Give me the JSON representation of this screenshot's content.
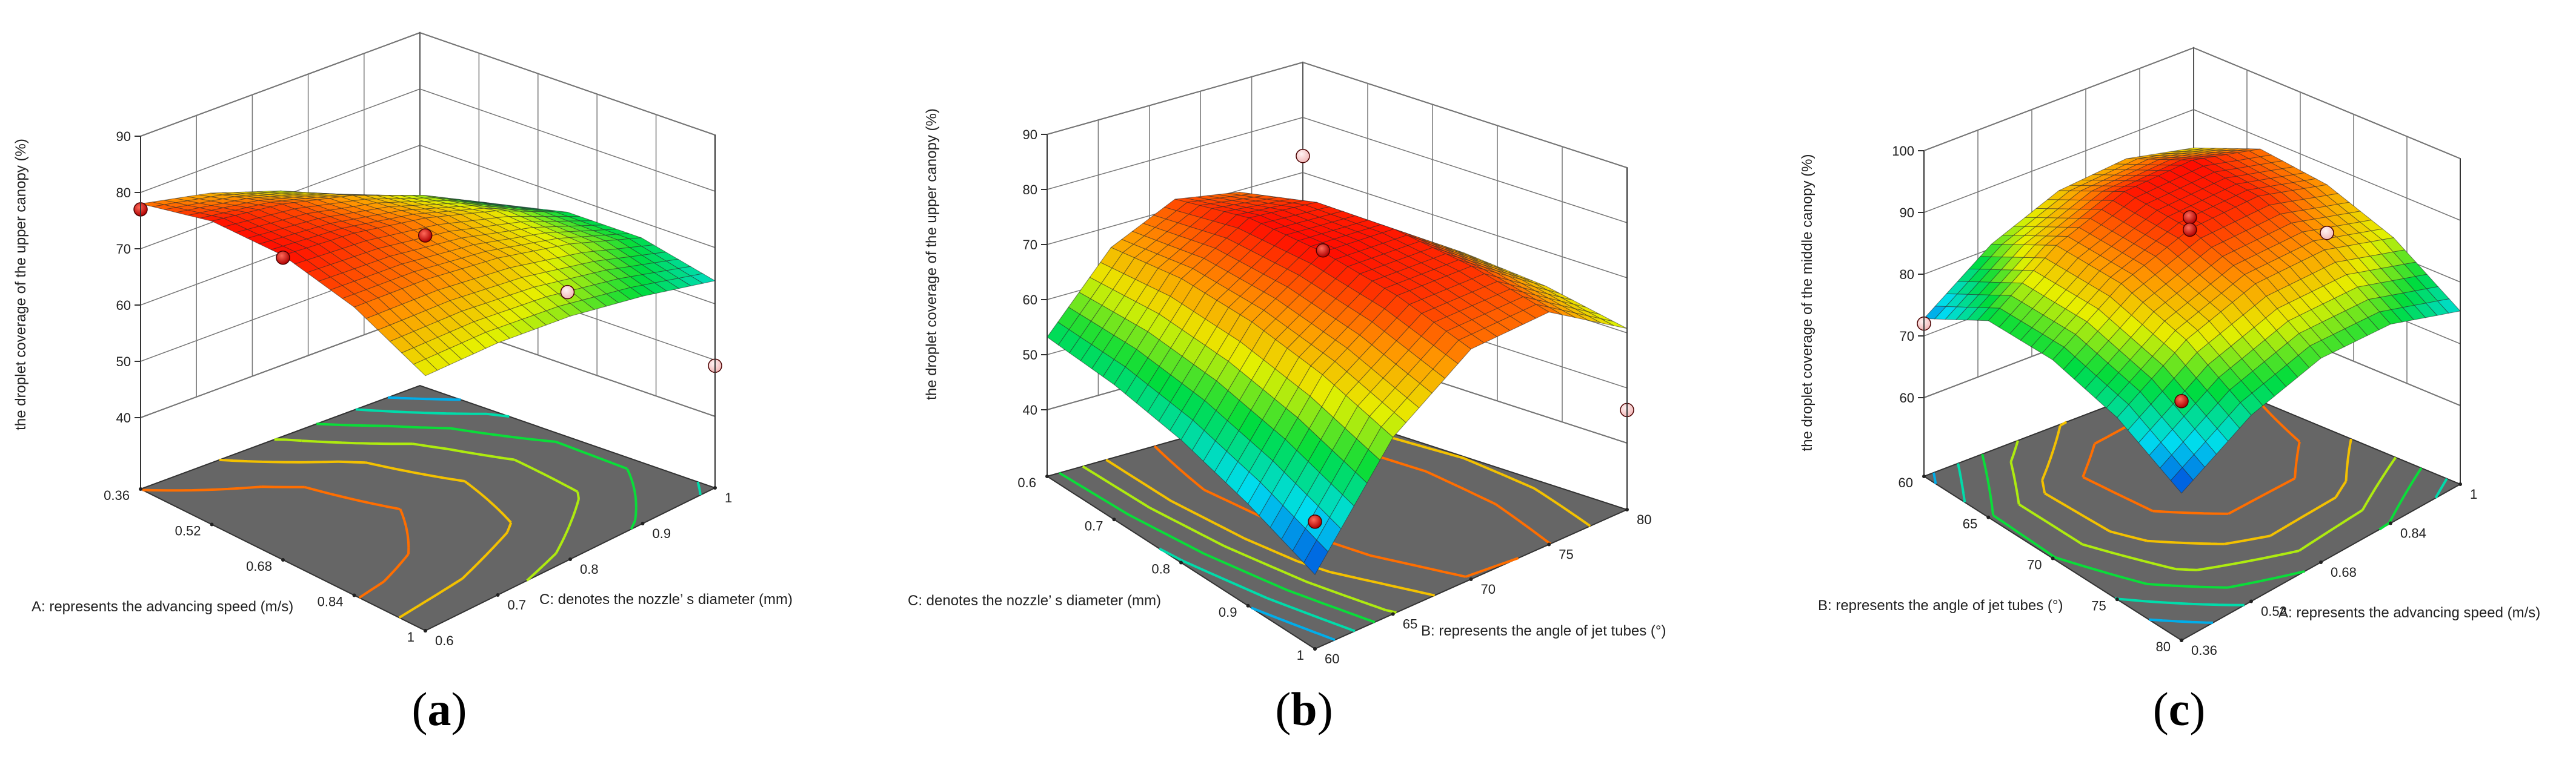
{
  "figure": {
    "panels": [
      {
        "id": "a",
        "caption_letter": "a"
      },
      {
        "id": "b",
        "caption_letter": "b"
      },
      {
        "id": "c",
        "caption_letter": "c"
      }
    ]
  },
  "chart_data": [
    {
      "type": "surface",
      "panel": "a",
      "title": "",
      "zlabel": "the droplet coverage of the upper canopy (%)",
      "xlabel": "A: represents the advancing speed (m/s)",
      "ylabel": "C: denotes the nozzle’ s diameter (mm)",
      "x_ticks": [
        "0.36",
        "0.52",
        "0.68",
        "0.84",
        "1"
      ],
      "y_ticks": [
        "0.6",
        "0.7",
        "0.8",
        "0.9",
        "1"
      ],
      "z_ticks": [
        "40",
        "50",
        "60",
        "70",
        "80",
        "90"
      ],
      "xlim": [
        0.36,
        1.0
      ],
      "ylim": [
        0.6,
        1.0
      ],
      "zlim": [
        40,
        90
      ],
      "surface_z": [
        [
          78,
          75.3,
          71.1,
          65.4,
          58.2
        ],
        [
          81.2,
          79.2,
          75.7,
          70.7,
          64.2
        ],
        [
          81.4,
          79.9,
          77.1,
          72.9,
          67.2
        ],
        [
          78.5,
          77.5,
          75.4,
          72.0,
          67.2
        ],
        [
          72.6,
          72.1,
          70.5,
          67.7,
          64.1
        ]
      ],
      "design_points": [
        {
          "x": 0.36,
          "y": 0.6,
          "z": 77,
          "marker": "above"
        },
        {
          "x": 0.68,
          "y": 0.6,
          "z": 81,
          "marker": "above"
        },
        {
          "x": 0.68,
          "y": 0.8,
          "z": 74,
          "marker": "above"
        },
        {
          "x": 0.68,
          "y": 1.0,
          "z": 53,
          "marker": "below"
        },
        {
          "x": 1.0,
          "y": 1.0,
          "z": 49,
          "marker": "below"
        }
      ],
      "grid": true
    },
    {
      "type": "surface",
      "panel": "b",
      "title": "",
      "zlabel": "the droplet coverage of the upper canopy (%)",
      "xlabel": "C: denotes the nozzle’ s diameter (mm)",
      "ylabel": "B: represents the angle of jet tubes (°)",
      "x_ticks": [
        "0.6",
        "0.7",
        "0.8",
        "0.9",
        "1"
      ],
      "y_ticks": [
        "60",
        "65",
        "70",
        "75",
        "80"
      ],
      "z_ticks": [
        "40",
        "50",
        "60",
        "70",
        "80",
        "90"
      ],
      "xlim": [
        0.6,
        1.0
      ],
      "ylim": [
        60,
        80
      ],
      "zlim": [
        40,
        90
      ],
      "surface_z": [
        [
          53.2,
          66.2,
          71.7,
          69.7,
          60.2
        ],
        [
          52.4,
          67.6,
          74.6,
          73.4,
          64.1
        ],
        [
          50.2,
          66.8,
          74.7,
          74.1,
          64.9
        ],
        [
          46.4,
          64.3,
          73.1,
          72.9,
          63.7
        ],
        [
          41.4,
          60.0,
          69.7,
          70.1,
          60.8
        ]
      ],
      "design_points": [
        {
          "x": 0.6,
          "y": 80,
          "z": 73,
          "marker": "below"
        },
        {
          "x": 0.8,
          "y": 70,
          "z": 75,
          "marker": "above"
        },
        {
          "x": 1.0,
          "y": 80,
          "z": 46,
          "marker": "below"
        },
        {
          "x": 1.0,
          "y": 60,
          "z": 51,
          "marker": "above"
        }
      ],
      "grid": true
    },
    {
      "type": "surface",
      "panel": "c",
      "title": "",
      "zlabel": "the droplet coverage of the middle canopy (%)",
      "xlabel": "B: represents the angle of jet tubes (°)",
      "ylabel": "A: represents the advancing speed (m/s)",
      "x_ticks": [
        "60",
        "65",
        "70",
        "75",
        "80"
      ],
      "y_ticks": [
        "0.36",
        "0.52",
        "0.68",
        "0.84",
        "1"
      ],
      "z_ticks": [
        "60",
        "70",
        "80",
        "90",
        "100"
      ],
      "xlim": [
        60,
        80
      ],
      "ylim": [
        0.36,
        1.0
      ],
      "zlim": [
        60,
        100
      ],
      "surface_z": [
        [
          72.8,
          80.7,
          85.2,
          86.2,
          83.8
        ],
        [
          79.1,
          86.6,
          90.6,
          91.0,
          88.1
        ],
        [
          79.4,
          86.5,
          90.1,
          90.2,
          86.8
        ],
        [
          76.7,
          83.5,
          86.8,
          86.5,
          82.7
        ],
        [
          71.1,
          77.4,
          80.3,
          79.5,
          75.3
        ]
      ],
      "design_points": [
        {
          "x": 60,
          "y": 0.36,
          "z": 72,
          "marker": "below"
        },
        {
          "x": 80,
          "y": 0.36,
          "z": 86,
          "marker": "above"
        },
        {
          "x": 70,
          "y": 0.68,
          "z": 92,
          "marker": "above"
        },
        {
          "x": 70,
          "y": 0.68,
          "z": 90,
          "marker": "above"
        },
        {
          "x": 70,
          "y": 1.0,
          "z": 79,
          "marker": "below"
        }
      ],
      "grid": true
    }
  ]
}
